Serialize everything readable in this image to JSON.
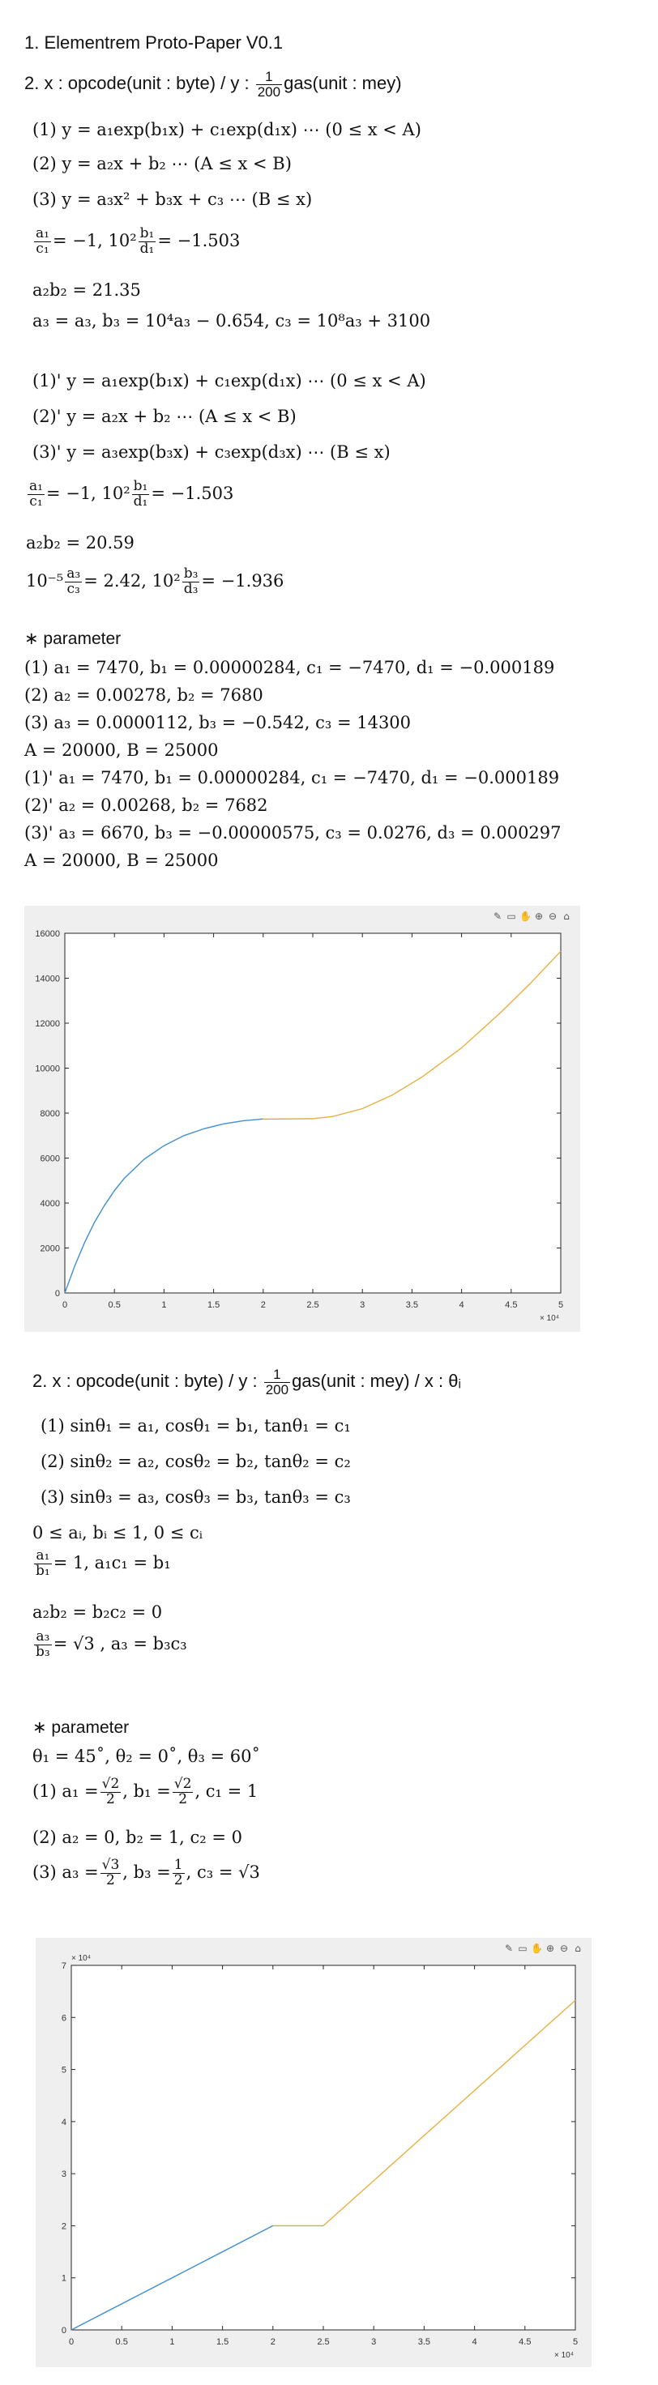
{
  "title": "1. Elementrem Proto-Paper V0.1",
  "section2_header": {
    "prefix": "2.  x : opcode(unit : byte)  /  y : ",
    "frac_num": "1",
    "frac_den": "200",
    "suffix": "gas(unit : mey)"
  },
  "model_a": {
    "eq1": "(1)  y = a₁exp(b₁x) + c₁exp(d₁x)  ⋯  (0 ≤ x < A)",
    "eq2": "(2)  y = a₂x + b₂  ⋯  (A ≤ x < B)",
    "eq3": "(3)  y = a₃x² + b₃x + c₃ ⋯ (B ≤ x)",
    "r1_frac_num": "a₁",
    "r1_frac_den": "c₁",
    "r1_mid": "= −1,  10²",
    "r1_frac2_num": "b₁",
    "r1_frac2_den": "d₁",
    "r1_tail": "= −1.503",
    "r2": "a₂b₂ = 21.35",
    "r3": "a₃ = a₃,  b₃ = 10⁴a₃ − 0.654,  c₃ = 10⁸a₃ + 3100"
  },
  "model_b": {
    "eq1": "(1)'  y = a₁exp(b₁x) + c₁exp(d₁x)  ⋯  (0 ≤ x < A)",
    "eq2": "(2)'  y = a₂x + b₂  ⋯  (A ≤ x < B)",
    "eq3": "(3)'  y = a₃exp(b₃x) + c₃exp(d₃x)  ⋯  (B ≤ x)",
    "r1_frac_num": "a₁",
    "r1_frac_den": "c₁",
    "r1_mid": "= −1,  10²",
    "r1_frac2_num": "b₁",
    "r1_frac2_den": "d₁",
    "r1_tail": "= −1.503",
    "r2": "a₂b₂ = 20.59",
    "r3_prefix": "10⁻⁵",
    "r3_frac_num": "a₃",
    "r3_frac_den": "c₃",
    "r3_mid": "= 2.42,  10²",
    "r3_frac2_num": "b₃",
    "r3_frac2_den": "d₃",
    "r3_tail": "= −1.936"
  },
  "params1": {
    "heading": "∗  parameter",
    "p1": "(1)  a₁ = 7470,  b₁ = 0.00000284,  c₁ = −7470,  d₁ = −0.000189",
    "p2": "(2)  a₂ = 0.00278,  b₂ = 7680",
    "p3": "(3)  a₃ = 0.0000112,  b₃ = −0.542,  c₃ = 14300",
    "ab": "A = 20000,  B = 25000",
    "q1": "(1)'  a₁ = 7470,  b₁ = 0.00000284,  c₁ = −7470,  d₁ = −0.000189",
    "q2": "(2)'  a₂ = 0.00268,  b₂ = 7682",
    "q3": "(3)'  a₃ = 6670,  b₃ = −0.00000575,  c₃ = 0.0276,  d₃ = 0.000297",
    "ab2": "A = 20000,  B = 25000"
  },
  "section3_header": {
    "prefix": "2.  x : opcode(unit : byte)  /  y : ",
    "frac_num": "1",
    "frac_den": "200",
    "suffix": "gas(unit : mey)  /  x : θᵢ"
  },
  "model_c": {
    "eq1": "(1)  sinθ₁ = a₁,  cosθ₁ = b₁,  tanθ₁ = c₁",
    "eq2": "(2)  sinθ₂ = a₂,  cosθ₂ = b₂,  tanθ₂ = c₂",
    "eq3": "(3)  sinθ₃ = a₃,  cosθ₃ = b₃,  tanθ₃ = c₃",
    "c0": "0 ≤ aᵢ, bᵢ ≤ 1,  0 ≤ cᵢ",
    "r1_frac_num": "a₁",
    "r1_frac_den": "b₁",
    "r1_tail": "= 1,  a₁c₁ = b₁",
    "r2": "a₂b₂ = b₂c₂ = 0",
    "r3_frac_num": "a₃",
    "r3_frac_den": "b₃",
    "r3_tail": "= √3 ,  a₃ = b₃c₃"
  },
  "params2": {
    "heading": "∗  parameter",
    "theta": "θ₁ = 45˚,  θ₂ = 0˚,  θ₃ = 60˚",
    "p1_pre": "(1)  a₁ =",
    "p1_f1_num": "√2",
    "p1_f1_den": "2",
    "p1_mid": ",  b₁ =",
    "p1_f2_num": "√2",
    "p1_f2_den": "2",
    "p1_tail": ",  c₁ = 1",
    "p2": "(2)  a₂ = 0,  b₂ = 1,  c₂ = 0",
    "p3_pre": "(3)  a₃ =",
    "p3_f1_num": "√3",
    "p3_f1_den": "2",
    "p3_mid": ",  b₃ =",
    "p3_f2_num": "1",
    "p3_f2_den": "2",
    "p3_tail": ",  c₃ = √3"
  },
  "chart_data": [
    {
      "type": "line",
      "title": "",
      "xlabel": "",
      "ylabel": "",
      "xlim": [
        0,
        50000
      ],
      "ylim": [
        0,
        16000
      ],
      "x_exponent_label": "× 10⁴",
      "xticks": [
        0,
        5000,
        10000,
        15000,
        20000,
        25000,
        30000,
        35000,
        40000,
        45000,
        50000
      ],
      "xtick_labels": [
        "0",
        "0.5",
        "1",
        "1.5",
        "2",
        "2.5",
        "3",
        "3.5",
        "4",
        "4.5",
        "5"
      ],
      "yticks": [
        0,
        2000,
        4000,
        6000,
        8000,
        10000,
        12000,
        14000,
        16000
      ],
      "ytick_labels": [
        "0",
        "2000",
        "4000",
        "6000",
        "8000",
        "10000",
        "12000",
        "14000",
        "16000"
      ],
      "grid": false,
      "series": [
        {
          "color": "#3f8fd2",
          "x": [
            0,
            1000,
            2000,
            3000,
            4000,
            5000,
            6000,
            8000,
            10000,
            12000,
            14000,
            16000,
            18000,
            20000
          ],
          "y": [
            0,
            1200,
            2250,
            3150,
            3900,
            4550,
            5100,
            5950,
            6550,
            7000,
            7300,
            7520,
            7660,
            7740
          ]
        },
        {
          "color": "#d9a93f",
          "x": [
            20000,
            25000
          ],
          "y": [
            7735,
            7750
          ]
        },
        {
          "color": "#e8b040",
          "x": [
            25000,
            27000,
            30000,
            33000,
            36000,
            40000,
            44000,
            47000,
            50000
          ],
          "y": [
            7750,
            7850,
            8200,
            8800,
            9600,
            10900,
            12500,
            13800,
            15200
          ]
        }
      ]
    },
    {
      "type": "line",
      "title": "",
      "xlabel": "",
      "ylabel": "",
      "xlim": [
        0,
        50000
      ],
      "ylim": [
        0,
        70000
      ],
      "x_exponent_label": "× 10⁴",
      "y_exponent_label": "× 10⁴",
      "xticks": [
        0,
        5000,
        10000,
        15000,
        20000,
        25000,
        30000,
        35000,
        40000,
        45000,
        50000
      ],
      "xtick_labels": [
        "0",
        "0.5",
        "1",
        "1.5",
        "2",
        "2.5",
        "3",
        "3.5",
        "4",
        "4.5",
        "5"
      ],
      "yticks": [
        0,
        10000,
        20000,
        30000,
        40000,
        50000,
        60000,
        70000
      ],
      "ytick_labels": [
        "0",
        "1",
        "2",
        "3",
        "4",
        "5",
        "6",
        "7"
      ],
      "grid": false,
      "series": [
        {
          "color": "#3f8fd2",
          "x": [
            0,
            20000
          ],
          "y": [
            0,
            20000
          ]
        },
        {
          "color": "#d9a93f",
          "x": [
            20000,
            25000
          ],
          "y": [
            20000,
            20000
          ]
        },
        {
          "color": "#e8b040",
          "x": [
            25000,
            50000
          ],
          "y": [
            20000,
            63300
          ]
        }
      ]
    }
  ]
}
